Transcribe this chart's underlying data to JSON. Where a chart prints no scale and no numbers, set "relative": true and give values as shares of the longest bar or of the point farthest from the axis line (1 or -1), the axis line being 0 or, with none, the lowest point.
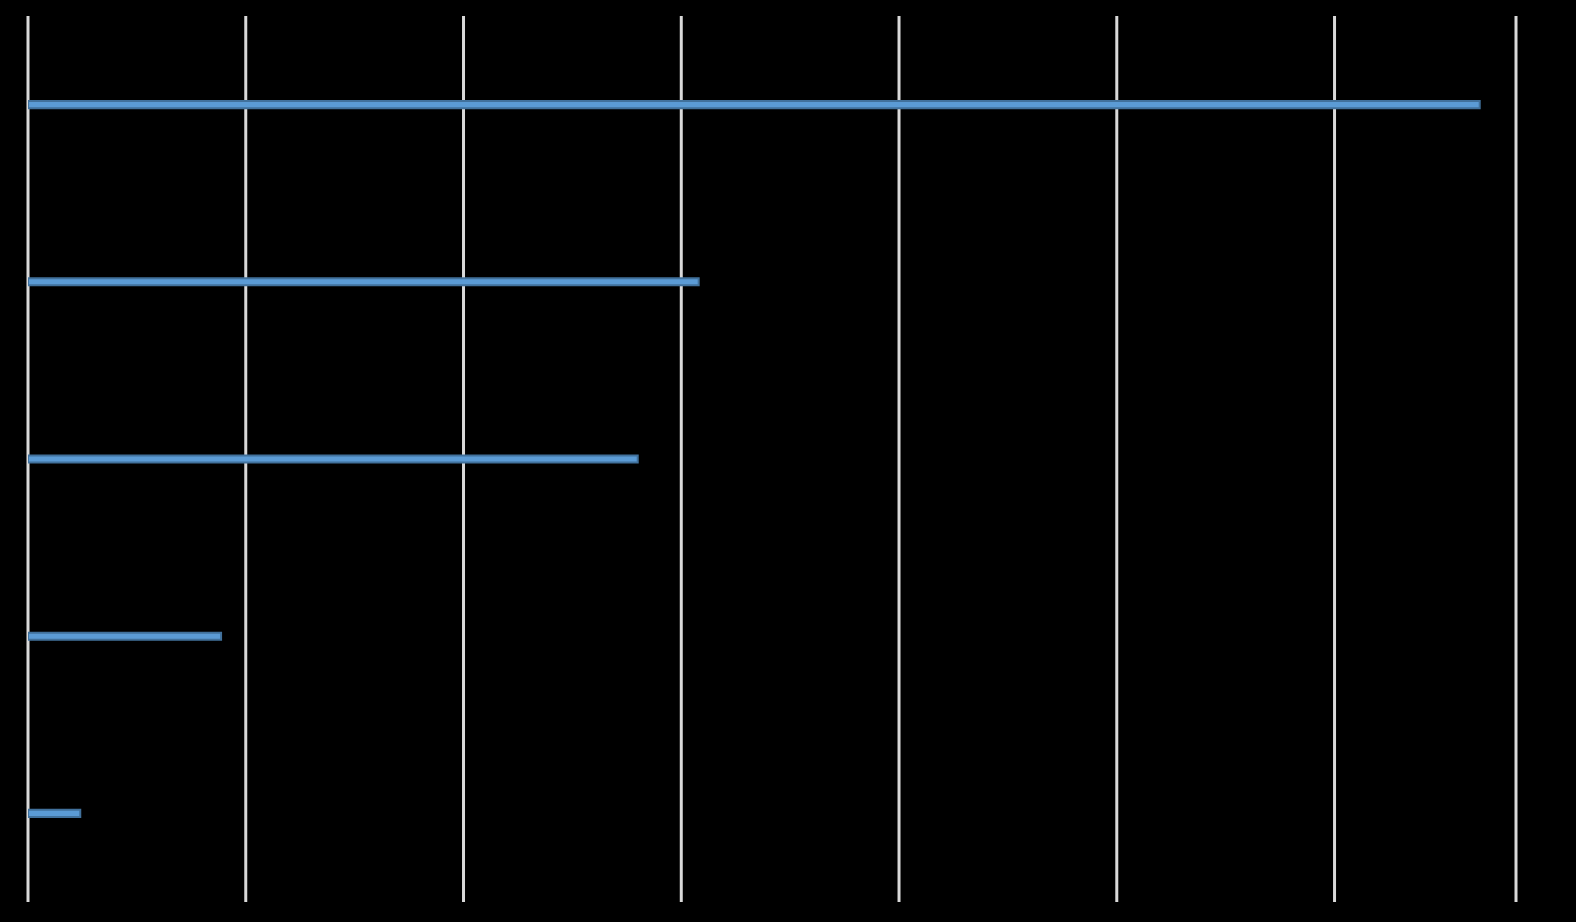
{
  "chart_data": {
    "type": "bar",
    "orientation": "horizontal",
    "relative": true,
    "categories": [
      null,
      null,
      null,
      null,
      null
    ],
    "values": [
      1,
      0.462,
      0.42,
      0.133,
      0.036
    ],
    "color": "#5b9bd5",
    "grid": "x"
  }
}
